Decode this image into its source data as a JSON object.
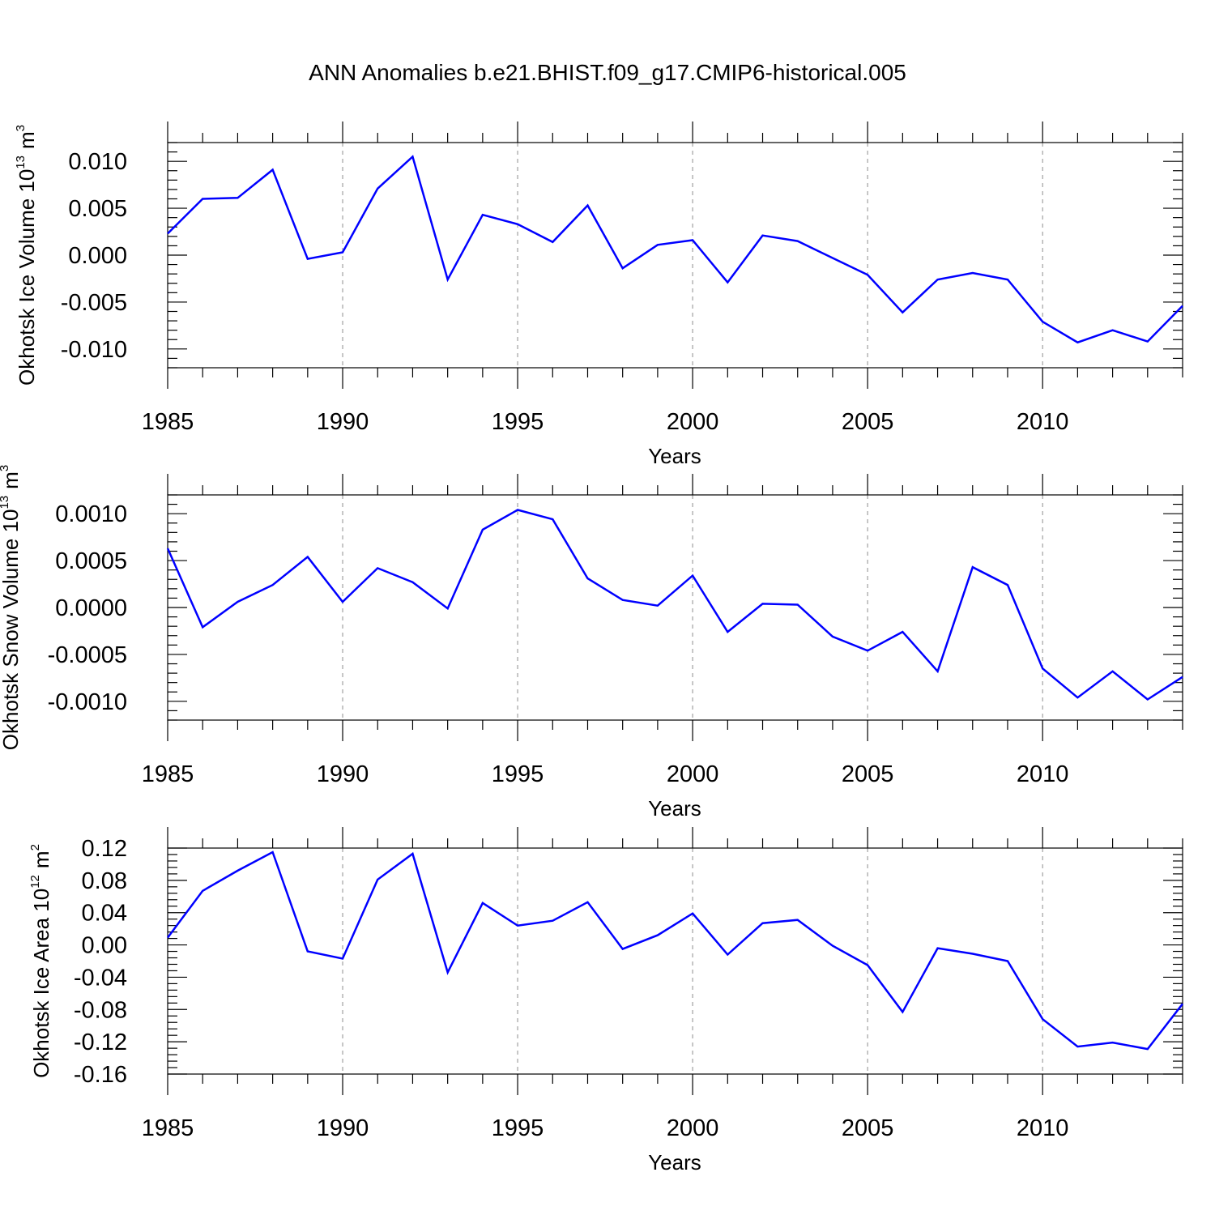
{
  "title": "ANN Anomalies b.e21.BHIST.f09_g17.CMIP6-historical.005",
  "line_color": "#0000ff",
  "chart_data": [
    {
      "type": "line",
      "ylabel_main": "Okhotsk Ice Volume 10",
      "ylabel_exp": "13",
      "ylabel_unit": "m",
      "ylabel_unit_exp": "3",
      "xlabel": "Years",
      "xlim": [
        1985,
        2014
      ],
      "ylim": [
        -0.012,
        0.012
      ],
      "xticks": [
        "1985",
        "1990",
        "1995",
        "2000",
        "2005",
        "2010"
      ],
      "yticks": [
        "0.010",
        "0.005",
        "0.000",
        "-0.005",
        "-0.010"
      ],
      "ytick_values": [
        0.01,
        0.005,
        0.0,
        -0.005,
        -0.01
      ],
      "years": [
        1985,
        1986,
        1987,
        1988,
        1989,
        1990,
        1991,
        1992,
        1993,
        1994,
        1995,
        1996,
        1997,
        1998,
        1999,
        2000,
        2001,
        2002,
        2003,
        2004,
        2005,
        2006,
        2007,
        2008,
        2009,
        2010,
        2011,
        2012,
        2013,
        2014
      ],
      "values": [
        0.0023,
        0.006,
        0.0061,
        0.0091,
        -0.0004,
        0.0003,
        0.0071,
        0.0105,
        -0.0026,
        0.0043,
        0.0033,
        0.0014,
        0.0053,
        -0.0014,
        0.0011,
        0.0016,
        -0.0029,
        0.0021,
        0.0015,
        -0.0003,
        -0.0021,
        -0.0061,
        -0.0026,
        -0.0019,
        -0.0026,
        -0.0071,
        -0.0093,
        -0.008,
        -0.0092,
        -0.0054
      ]
    },
    {
      "type": "line",
      "ylabel_main": "Okhotsk Snow Volume 10",
      "ylabel_exp": "13",
      "ylabel_unit": "m",
      "ylabel_unit_exp": "3",
      "xlabel": "Years",
      "xlim": [
        1985,
        2014
      ],
      "ylim": [
        -0.0012,
        0.0012
      ],
      "xticks": [
        "1985",
        "1990",
        "1995",
        "2000",
        "2005",
        "2010"
      ],
      "yticks": [
        "0.0010",
        "0.0005",
        "0.0000",
        "-0.0005",
        "-0.0010"
      ],
      "ytick_values": [
        0.001,
        0.0005,
        0.0,
        -0.0005,
        -0.001
      ],
      "years": [
        1985,
        1986,
        1987,
        1988,
        1989,
        1990,
        1991,
        1992,
        1993,
        1994,
        1995,
        1996,
        1997,
        1998,
        1999,
        2000,
        2001,
        2002,
        2003,
        2004,
        2005,
        2006,
        2007,
        2008,
        2009,
        2010,
        2011,
        2012,
        2013,
        2014
      ],
      "values": [
        0.00063,
        -0.00021,
        6e-05,
        0.00024,
        0.00054,
        6e-05,
        0.00042,
        0.00027,
        -1e-05,
        0.00083,
        0.00104,
        0.00094,
        0.00031,
        8e-05,
        2e-05,
        0.00034,
        -0.00026,
        4e-05,
        3e-05,
        -0.00031,
        -0.00046,
        -0.00026,
        -0.00068,
        0.00043,
        0.00024,
        -0.00065,
        -0.00096,
        -0.00068,
        -0.00098,
        -0.00074
      ]
    },
    {
      "type": "line",
      "ylabel_main": "Okhotsk Ice Area 10",
      "ylabel_exp": "12",
      "ylabel_unit": "m",
      "ylabel_unit_exp": "2",
      "xlabel": "Years",
      "xlim": [
        1985,
        2014
      ],
      "ylim": [
        -0.16,
        0.12
      ],
      "xticks": [
        "1985",
        "1990",
        "1995",
        "2000",
        "2005",
        "2010"
      ],
      "yticks": [
        "0.12",
        "0.08",
        "0.04",
        "0.00",
        "-0.04",
        "-0.08",
        "-0.12",
        "-0.16"
      ],
      "ytick_values": [
        0.12,
        0.08,
        0.04,
        0.0,
        -0.04,
        -0.08,
        -0.12,
        -0.16
      ],
      "years": [
        1985,
        1986,
        1987,
        1988,
        1989,
        1990,
        1991,
        1992,
        1993,
        1994,
        1995,
        1996,
        1997,
        1998,
        1999,
        2000,
        2001,
        2002,
        2003,
        2004,
        2005,
        2006,
        2007,
        2008,
        2009,
        2010,
        2011,
        2012,
        2013,
        2014
      ],
      "values": [
        0.009,
        0.067,
        0.092,
        0.115,
        -0.008,
        -0.017,
        0.081,
        0.113,
        -0.034,
        0.052,
        0.024,
        0.03,
        0.053,
        -0.005,
        0.012,
        0.039,
        -0.012,
        0.027,
        0.031,
        -0.001,
        -0.025,
        -0.083,
        -0.004,
        -0.011,
        -0.02,
        -0.092,
        -0.126,
        -0.121,
        -0.129,
        -0.073
      ]
    }
  ]
}
